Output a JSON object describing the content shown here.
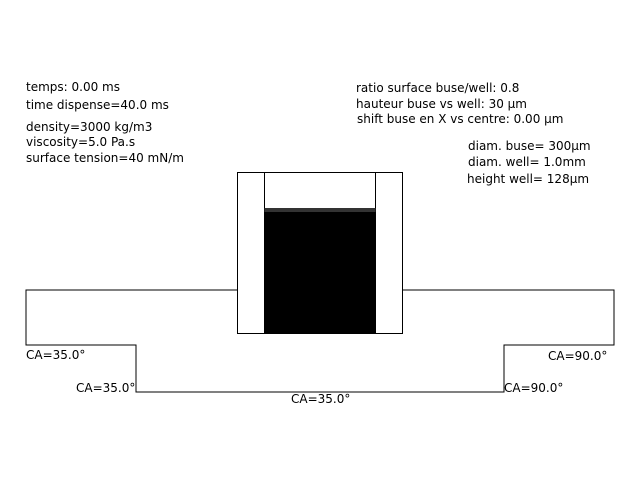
{
  "params_left": {
    "time": "temps: 0.00 ms",
    "dispense": "time dispense=40.0 ms",
    "density": "density=3000 kg/m3",
    "viscosity": "viscosity=5.0 Pa.s",
    "surface_tension": "surface tension=40 mN/m"
  },
  "params_right": {
    "ratio": "ratio surface buse/well: 0.8",
    "height_nozzle": "hauteur buse vs well: 30 µm",
    "shift": "shift buse en X vs centre: 0.00 µm",
    "diam_nozzle": "diam. buse= 300µm",
    "diam_well": "diam. well= 1.0mm",
    "height_well": "height well= 128µm"
  },
  "contact_angles": {
    "left_top": "CA=35.0°",
    "left_bottom": "CA=35.0°",
    "bottom": "CA=35.0°",
    "right_top": "CA=90.0°",
    "right_bottom": "CA=90.0°"
  },
  "colors": {
    "line": "#000000",
    "fluid": "#000000",
    "background": "#ffffff"
  }
}
